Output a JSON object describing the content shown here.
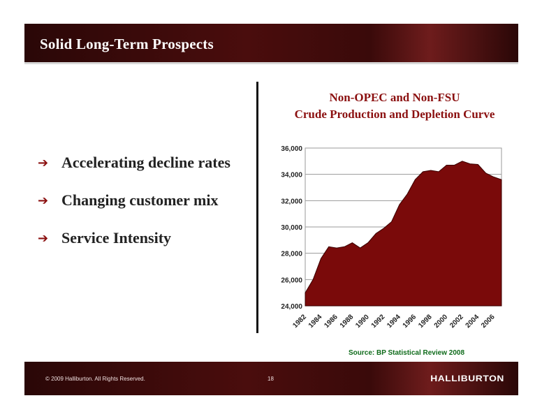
{
  "header": {
    "title": "Solid Long-Term Prospects"
  },
  "bullets": [
    {
      "arrow_icon": "right-arrow-icon",
      "text": "Accelerating decline rates"
    },
    {
      "arrow_icon": "right-arrow-icon",
      "text": "Changing customer mix"
    },
    {
      "arrow_icon": "right-arrow-icon",
      "text": "Service Intensity"
    }
  ],
  "chart": {
    "title_line1": "Non-OPEC and Non-FSU",
    "title_line2": "Crude Production and Depletion Curve",
    "source": "Source: BP Statistical Review 2008"
  },
  "chart_data": {
    "type": "area",
    "title": "Non-OPEC and Non-FSU Crude Production and Depletion Curve",
    "xlabel": "",
    "ylabel": "",
    "x": [
      1982,
      1983,
      1984,
      1985,
      1986,
      1987,
      1988,
      1989,
      1990,
      1991,
      1992,
      1993,
      1994,
      1995,
      1996,
      1997,
      1998,
      1999,
      2000,
      2001,
      2002,
      2003,
      2004,
      2005,
      2006,
      2007
    ],
    "series": [
      {
        "values": [
          25000,
          26000,
          27600,
          28500,
          28400,
          28500,
          28800,
          28400,
          28800,
          29500,
          29900,
          30400,
          31700,
          32500,
          33600,
          34200,
          34300,
          34200,
          34700,
          34700,
          35000,
          34800,
          34750,
          34100,
          33800,
          33600
        ]
      }
    ],
    "x_tick_labels": [
      "1982",
      "1984",
      "1986",
      "1988",
      "1990",
      "1992",
      "1994",
      "1996",
      "1998",
      "2000",
      "2002",
      "2004",
      "2006"
    ],
    "y_tick_labels": [
      "36,000",
      "34,000",
      "32,000",
      "30,000",
      "28,000",
      "26,000",
      "24,000"
    ],
    "y_ticks": [
      36000,
      34000,
      32000,
      30000,
      28000,
      26000,
      24000
    ],
    "ylim": [
      24000,
      36000
    ],
    "xlim": [
      1982,
      2007
    ],
    "grid": true,
    "fill_color": "#7a0a0a",
    "legend": "none"
  },
  "footer": {
    "copyright": "© 2009 Halliburton. All Rights Reserved.",
    "page_number": "18",
    "logo_text": "HALLIBURTON"
  },
  "colors": {
    "band_dark": "#3a0a0a",
    "accent_red": "#8b1010",
    "source_green": "#0e6b1a"
  }
}
